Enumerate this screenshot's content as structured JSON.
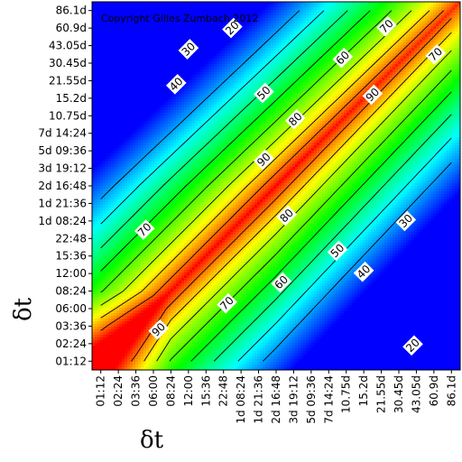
{
  "chart_data": {
    "type": "heatmap",
    "title": "",
    "xlabel": "δt",
    "ylabel": "δt",
    "copyright": "Copyright Gilles Zumbach 2012",
    "ticks": [
      "01:12",
      "02:24",
      "03:36",
      "06:00",
      "08:24",
      "12:00",
      "15:36",
      "22:48",
      "1d 08:24",
      "1d 21:36",
      "2d 16:48",
      "3d 19:12",
      "5d 09:36",
      "7d 14:24",
      "10.75d",
      "15.2d",
      "21.55d",
      "30.45d",
      "43.05d",
      "60.9d",
      "86.1d"
    ],
    "value_range": [
      0,
      100
    ],
    "colormap": [
      "#0000ff",
      "#00ffff",
      "#00ff00",
      "#ffff00",
      "#ff0000"
    ],
    "contour_levels": [
      20,
      30,
      40,
      50,
      60,
      70,
      80,
      90
    ],
    "contour_labels": [
      {
        "text": "20",
        "x": 7.5,
        "y": 19.0
      },
      {
        "text": "30",
        "x": 5.0,
        "y": 17.8
      },
      {
        "text": "40",
        "x": 4.3,
        "y": 15.8
      },
      {
        "text": "50",
        "x": 9.3,
        "y": 15.3
      },
      {
        "text": "60",
        "x": 13.8,
        "y": 17.3
      },
      {
        "text": "70",
        "x": 16.3,
        "y": 19.1
      },
      {
        "text": "70",
        "x": 19.1,
        "y": 17.5
      },
      {
        "text": "80",
        "x": 11.1,
        "y": 13.8
      },
      {
        "text": "90",
        "x": 15.5,
        "y": 15.2
      },
      {
        "text": "90",
        "x": 9.3,
        "y": 11.5
      },
      {
        "text": "80",
        "x": 10.6,
        "y": 8.3
      },
      {
        "text": "70",
        "x": 2.5,
        "y": 7.5
      },
      {
        "text": "70",
        "x": 7.2,
        "y": 3.3
      },
      {
        "text": "60",
        "x": 10.3,
        "y": 4.5
      },
      {
        "text": "50",
        "x": 13.5,
        "y": 6.3
      },
      {
        "text": "40",
        "x": 15.0,
        "y": 5.1
      },
      {
        "text": "30",
        "x": 17.4,
        "y": 8.0
      },
      {
        "text": "20",
        "x": 17.8,
        "y": 0.9
      },
      {
        "text": "90",
        "x": 3.3,
        "y": 1.8
      }
    ]
  }
}
